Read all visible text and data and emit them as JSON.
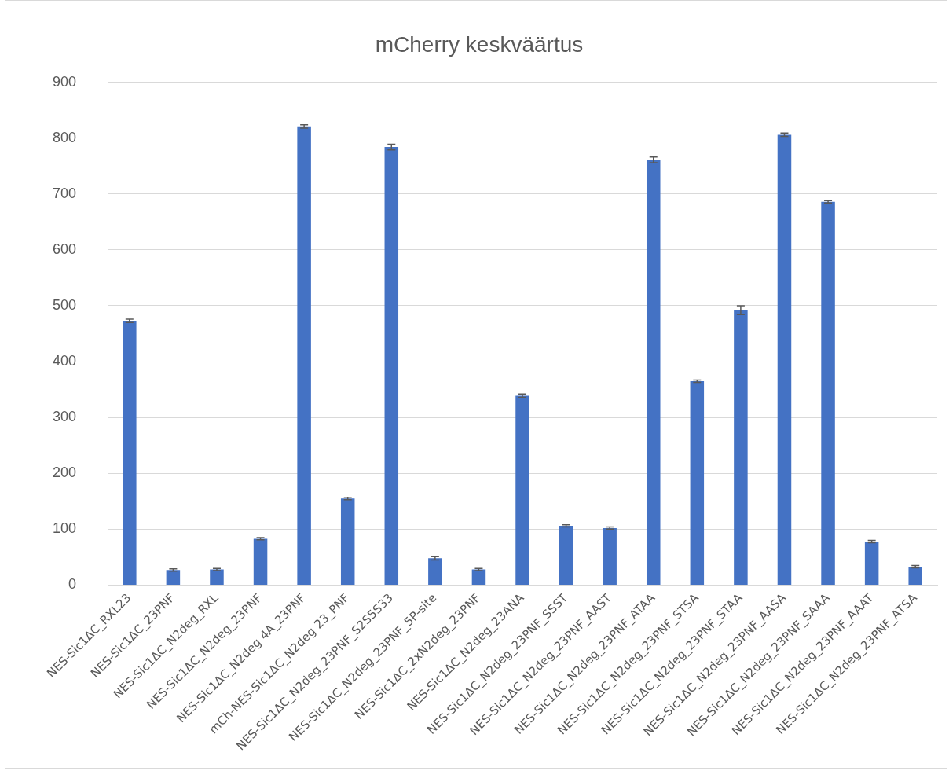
{
  "chart_data": {
    "type": "bar",
    "title": "mCherry keskväärtus",
    "categories": [
      "NES-Sic1ΔC_RXL23",
      "NES-Sic1ΔC_23PNF",
      "NES-Sic1ΔC_N2deg_RXL",
      "NES-Sic1ΔC_N2deg_23PNF",
      "NES-Sic1ΔC_N2deg 4A_23PNF",
      "mCh-NES-Sic1ΔC_N2deg 23_PNF",
      "NES-Sic1ΔC_N2deg_23PNF_S2S5S33",
      "NES-Sic1ΔC_N2deg_23PNF_5P-site",
      "NES-Sic1ΔC_2xN2deg_23PNF",
      "NES-Sic1ΔC_N2deg_23ANA",
      "NES-Sic1ΔC_N2deg_23PNF_SSST",
      "NES-Sic1ΔC_N2deg_23PNF_AAST",
      "NES-Sic1ΔC_N2deg_23PNF_ATAA",
      "NES-Sic1ΔC_N2deg_23PNF_STSA",
      "NES-Sic1ΔC_N2deg_23PNF_STAA",
      "NES-Sic1ΔC_N2deg_23PNF_AASA",
      "NES-Sic1ΔC_N2deg_23PNF_SAAA",
      "NES-Sic1ΔC_N2deg_23PNF_AAAT",
      "NES-Sic1ΔC_N2deg_23PNF_ATSA"
    ],
    "values": [
      473,
      27,
      28,
      83,
      821,
      155,
      784,
      48,
      28,
      339,
      106,
      102,
      761,
      365,
      492,
      806,
      686,
      78,
      33
    ],
    "errors": [
      3,
      2,
      2,
      2,
      3,
      2,
      5,
      3,
      2,
      3,
      2,
      2,
      5,
      2,
      8,
      3,
      2,
      2,
      2
    ],
    "color": "#4472c4",
    "ylim": [
      0,
      900
    ],
    "yticks": [
      0,
      100,
      200,
      300,
      400,
      500,
      600,
      700,
      800,
      900
    ],
    "grid": "y"
  }
}
